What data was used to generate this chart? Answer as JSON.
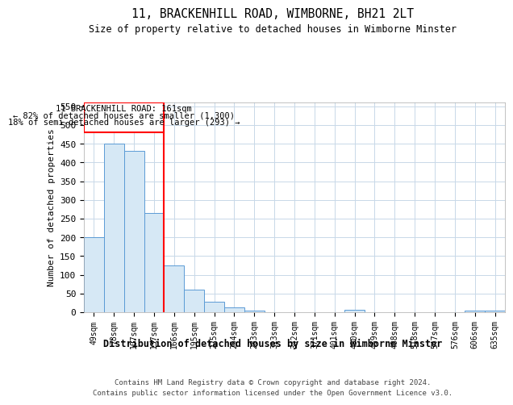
{
  "title1": "11, BRACKENHILL ROAD, WIMBORNE, BH21 2LT",
  "title2": "Size of property relative to detached houses in Wimborne Minster",
  "xlabel": "Distribution of detached houses by size in Wimborne Minster",
  "ylabel": "Number of detached properties",
  "footer1": "Contains HM Land Registry data © Crown copyright and database right 2024.",
  "footer2": "Contains public sector information licensed under the Open Government Licence v3.0.",
  "annotation_line1": "11 BRACKENHILL ROAD: 161sqm",
  "annotation_line2": "← 82% of detached houses are smaller (1,300)",
  "annotation_line3": "18% of semi-detached houses are larger (293) →",
  "bar_labels": [
    "49sqm",
    "78sqm",
    "107sqm",
    "137sqm",
    "166sqm",
    "195sqm",
    "225sqm",
    "254sqm",
    "283sqm",
    "313sqm",
    "342sqm",
    "371sqm",
    "401sqm",
    "430sqm",
    "459sqm",
    "488sqm",
    "518sqm",
    "547sqm",
    "576sqm",
    "606sqm",
    "635sqm"
  ],
  "bar_values": [
    200,
    450,
    430,
    265,
    125,
    60,
    28,
    12,
    5,
    0,
    0,
    0,
    0,
    7,
    0,
    0,
    0,
    0,
    0,
    5,
    5
  ],
  "bar_color": "#d6e8f5",
  "bar_edge_color": "#5b9bd5",
  "red_line_index": 3,
  "ylim": [
    0,
    560
  ],
  "yticks": [
    0,
    50,
    100,
    150,
    200,
    250,
    300,
    350,
    400,
    450,
    500,
    550
  ],
  "background_color": "#ffffff",
  "grid_color": "#c8d8e8"
}
